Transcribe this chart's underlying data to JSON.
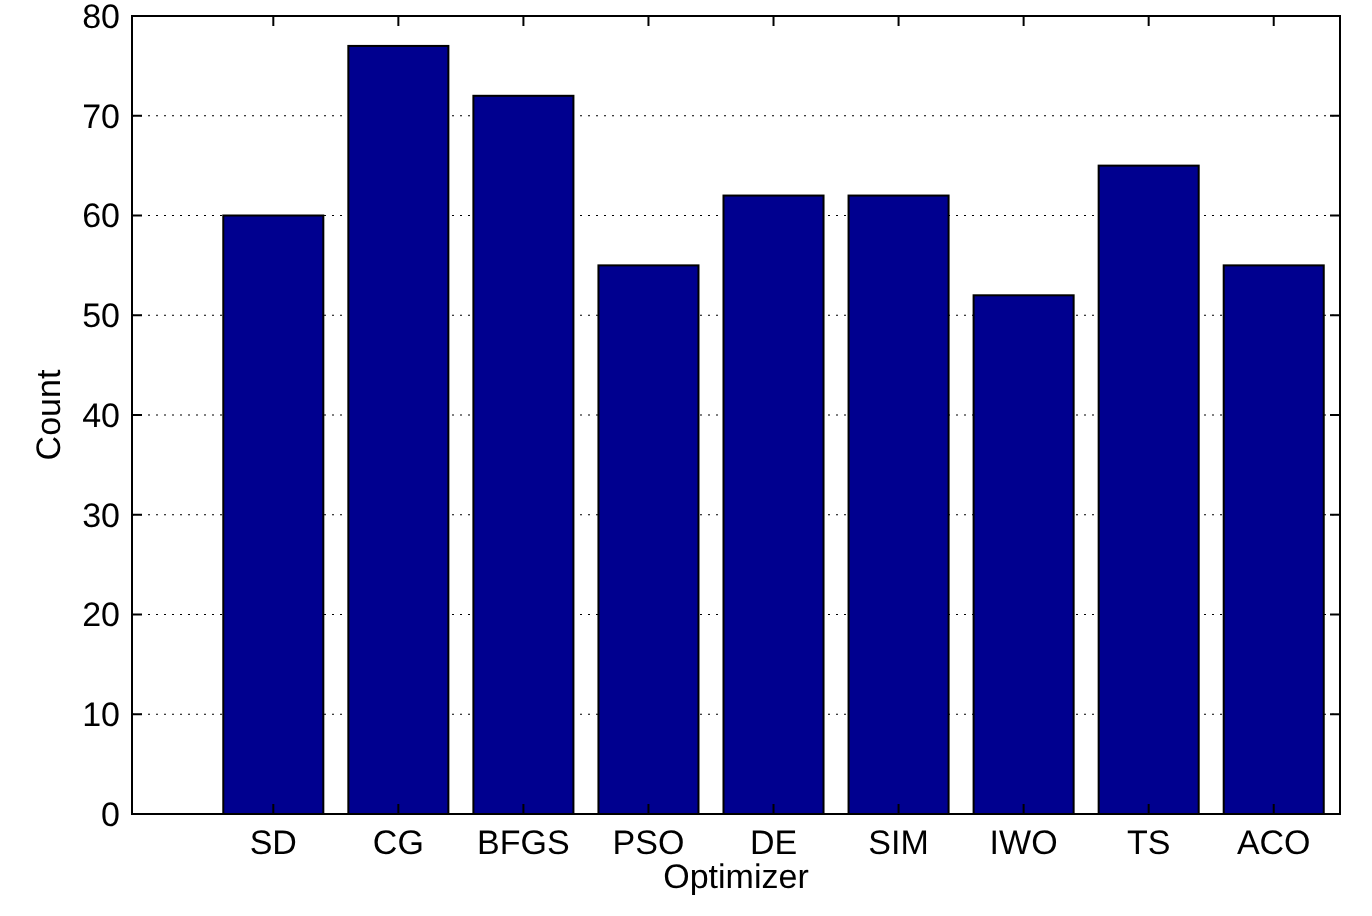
{
  "chart_data": {
    "type": "bar",
    "xlabel": "Optimizer",
    "ylabel": "Count",
    "categories": [
      "SD",
      "CG",
      "BFGS",
      "PSO",
      "DE",
      "SIM",
      "IWO",
      "TS",
      "ACO"
    ],
    "values": [
      60,
      77,
      72,
      55,
      62,
      62,
      52,
      65,
      55
    ],
    "color": "#00008f",
    "ylim": [
      0,
      80
    ],
    "yticks": [
      0,
      10,
      20,
      30,
      40,
      50,
      60,
      70,
      80
    ],
    "grid": "y"
  }
}
